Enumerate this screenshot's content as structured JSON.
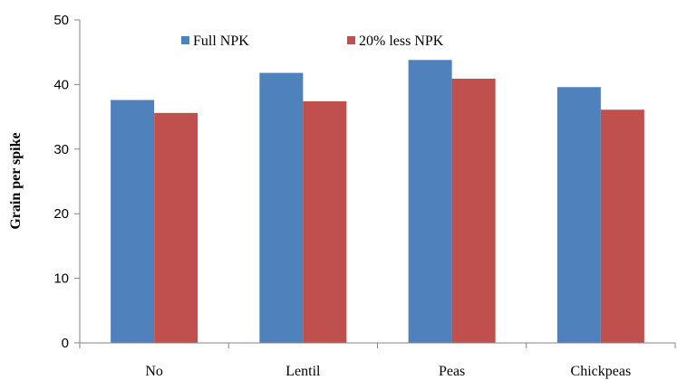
{
  "chart_data": {
    "type": "bar",
    "categories": [
      "No",
      "Lentil",
      "Peas",
      "Chickpeas"
    ],
    "series": [
      {
        "name": "Full NPK",
        "color": "#4F81BD",
        "values": [
          37.6,
          41.8,
          43.8,
          39.6
        ]
      },
      {
        "name": "20% less NPK",
        "color": "#C0504D",
        "values": [
          35.6,
          37.4,
          40.9,
          36.1
        ]
      }
    ],
    "xlabel": "",
    "ylabel": "Grain per spike",
    "ylim": [
      0,
      50
    ],
    "yticks": [
      0,
      10,
      20,
      30,
      40,
      50
    ],
    "grid": false,
    "legend_position": "top-center"
  }
}
